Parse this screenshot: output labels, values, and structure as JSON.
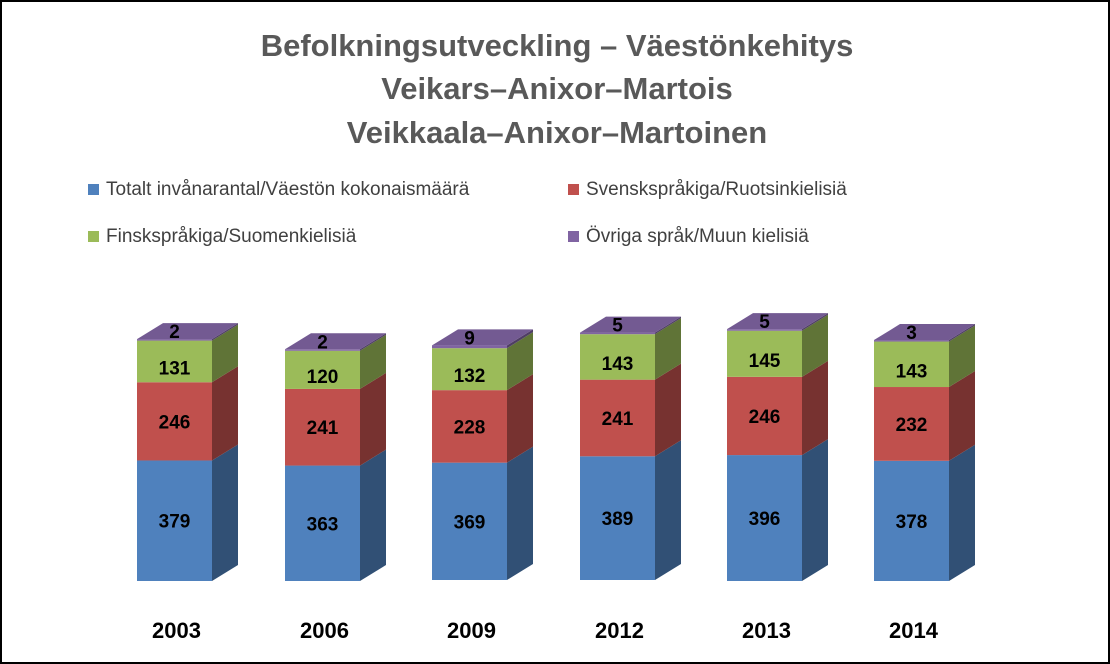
{
  "chart_data": {
    "type": "bar",
    "stacked": true,
    "three_d": true,
    "title": [
      "Befolkningsutveckling – Väestönkehitys",
      "Veikars–Anixor–Martois",
      "Veikkaala–Anixor–Martoinen"
    ],
    "categories": [
      "2003",
      "2006",
      "2009",
      "2012",
      "2013",
      "2014"
    ],
    "series": [
      {
        "name": "Totalt invånarantal/Väestön kokonaismäärä",
        "color": "#4F81BD",
        "values": [
          379,
          363,
          369,
          389,
          396,
          378
        ]
      },
      {
        "name": "Svenskspråkiga/Ruotsinkielisiä",
        "color": "#C0504D",
        "values": [
          246,
          241,
          228,
          241,
          246,
          232
        ]
      },
      {
        "name": "Finskspråkiga/Suomenkielisiä",
        "color": "#9BBB59",
        "values": [
          131,
          120,
          132,
          143,
          145,
          143
        ]
      },
      {
        "name": "Övriga språk/Muun kielisiä",
        "color": "#8064A2",
        "values": [
          2,
          2,
          9,
          5,
          5,
          3
        ]
      }
    ],
    "xlabel": "",
    "ylabel": "",
    "grid": false,
    "legend_position": "top"
  }
}
